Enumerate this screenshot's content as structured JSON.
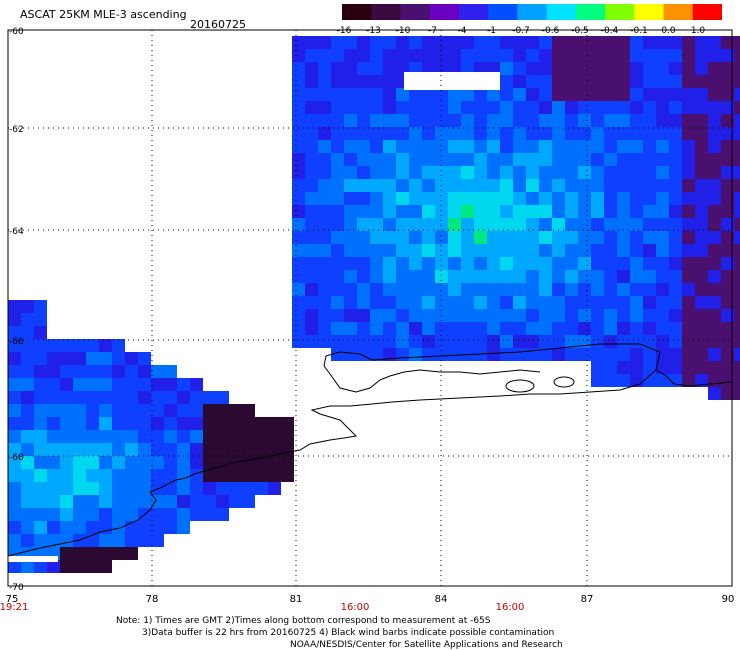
{
  "header": {
    "title": "ASCAT 25KM MLE-3 ascending",
    "date": "20160725"
  },
  "colorbar": {
    "labels": [
      "-16",
      "-13",
      "-10",
      "-7",
      "-4",
      "-1",
      "-0.7",
      "-0.6",
      "-0.5",
      "-0.4",
      "-0.1",
      "0.0",
      "1.0"
    ],
    "colors": [
      "#2a0010",
      "#3a0a40",
      "#4a1070",
      "#6a00c0",
      "#3020f0",
      "#0050ff",
      "#00a0ff",
      "#00e0ff",
      "#00ff80",
      "#80ff00",
      "#ffff00",
      "#ff9000",
      "#ff0000"
    ]
  },
  "map": {
    "lat_labels": [
      "-60",
      "-62",
      "-64",
      "-66",
      "-68",
      "-70"
    ],
    "lon_labels": [
      "75",
      "78",
      "81",
      "84",
      "87",
      "90"
    ],
    "time_labels": [
      "19:21",
      "16:00",
      "16:00"
    ]
  },
  "notes": {
    "line1": "Note: 1) Times are GMT 2)Times along bottom correspond to measurement at -65S",
    "line2": "3)Data buffer is 22 hrs from 20160725 4) Black wind barbs indicate possible contamination",
    "line3": "NOAA/NESDIS/Center for Satellite Applications and Research"
  }
}
